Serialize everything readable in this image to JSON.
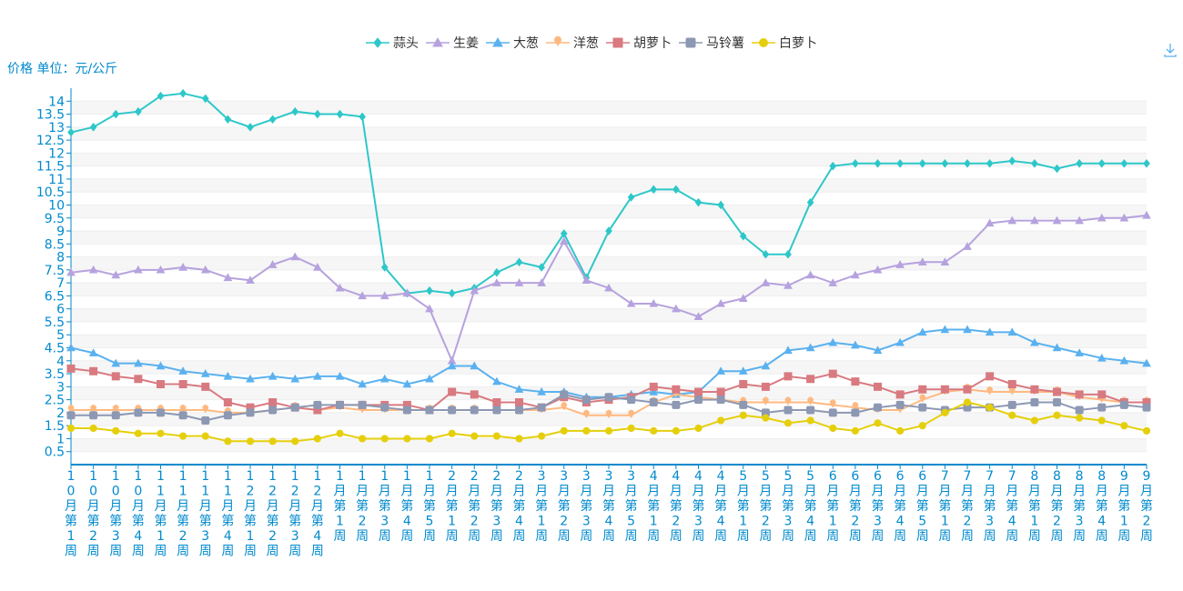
{
  "chart_data": {
    "type": "line",
    "y_axis_label": "价格 单位：元/公斤",
    "categories": [
      "10月第1周",
      "10月第2周",
      "10月第3周",
      "10月第4周",
      "11月第1周",
      "11月第2周",
      "11月第3周",
      "11月第4周",
      "12月第1周",
      "12月第2周",
      "12月第3周",
      "12月第4周",
      "1月第1周",
      "1月第2周",
      "1月第3周",
      "1月第4周",
      "1月第5周",
      "2月第1周",
      "2月第2周",
      "2月第3周",
      "2月第4周",
      "3月第1周",
      "3月第2周",
      "3月第3周",
      "3月第4周",
      "3月第5周",
      "4月第1周",
      "4月第2周",
      "4月第3周",
      "4月第4周",
      "5月第1周",
      "5月第2周",
      "5月第3周",
      "5月第4周",
      "6月第1周",
      "6月第2周",
      "6月第3周",
      "6月第4周",
      "6月第5周",
      "7月第1周",
      "7月第2周",
      "7月第3周",
      "7月第4周",
      "8月第1周",
      "8月第2周",
      "8月第3周",
      "8月第4周",
      "9月第1周",
      "9月第2周"
    ],
    "series": [
      {
        "name": "蒜头",
        "color": "#2ec7c9",
        "marker": "diamond",
        "values": [
          12.8,
          13.0,
          13.5,
          13.6,
          14.2,
          14.3,
          14.1,
          13.3,
          13.0,
          13.3,
          13.6,
          13.5,
          13.5,
          13.4,
          7.6,
          6.6,
          6.7,
          6.6,
          6.8,
          7.4,
          7.8,
          7.6,
          8.9,
          7.2,
          9.0,
          10.3,
          10.6,
          10.6,
          10.1,
          10.0,
          8.8,
          8.1,
          8.1,
          10.1,
          11.5,
          11.6,
          11.6,
          11.6,
          11.6,
          11.6,
          11.6,
          11.6,
          11.7,
          11.6,
          11.4,
          11.6,
          11.6,
          11.6,
          11.6
        ]
      },
      {
        "name": "生姜",
        "color": "#b6a2de",
        "marker": "triangle",
        "values": [
          7.4,
          7.5,
          7.3,
          7.5,
          7.5,
          7.6,
          7.5,
          7.2,
          7.1,
          7.7,
          8.0,
          7.6,
          6.8,
          6.5,
          6.5,
          6.6,
          6.0,
          4.0,
          6.7,
          7.0,
          7.0,
          7.0,
          8.6,
          7.1,
          6.8,
          6.2,
          6.2,
          6.0,
          5.7,
          6.2,
          6.4,
          7.0,
          6.9,
          7.3,
          7.0,
          7.3,
          7.5,
          7.7,
          7.8,
          7.8,
          8.4,
          9.3,
          9.4,
          9.4,
          9.4,
          9.4,
          9.5,
          9.5,
          9.6
        ]
      },
      {
        "name": "大葱",
        "color": "#5ab1ef",
        "marker": "triangle",
        "values": [
          4.5,
          4.3,
          3.9,
          3.9,
          3.8,
          3.6,
          3.5,
          3.4,
          3.3,
          3.4,
          3.3,
          3.4,
          3.4,
          3.1,
          3.3,
          3.1,
          3.3,
          3.8,
          3.8,
          3.2,
          2.9,
          2.8,
          2.8,
          2.6,
          2.6,
          2.7,
          2.8,
          2.7,
          2.8,
          3.6,
          3.6,
          3.8,
          4.4,
          4.5,
          4.7,
          4.6,
          4.4,
          4.7,
          5.1,
          5.2,
          5.2,
          5.1,
          5.1,
          4.7,
          4.5,
          4.3,
          4.1,
          4.0,
          3.9
        ]
      },
      {
        "name": "洋葱",
        "color": "#ffb980",
        "marker": "pin",
        "values": [
          2.1,
          2.1,
          2.1,
          2.1,
          2.1,
          2.1,
          2.1,
          2.0,
          2.0,
          2.1,
          2.2,
          2.1,
          2.2,
          2.1,
          2.1,
          2.1,
          2.1,
          2.1,
          2.1,
          2.1,
          2.1,
          2.1,
          2.2,
          1.9,
          1.9,
          1.9,
          2.4,
          2.7,
          2.6,
          2.5,
          2.4,
          2.4,
          2.4,
          2.4,
          2.3,
          2.2,
          2.1,
          2.1,
          2.5,
          2.8,
          2.9,
          2.8,
          2.8,
          2.8,
          2.8,
          2.6,
          2.5,
          2.4,
          2.4
        ]
      },
      {
        "name": "胡萝卜",
        "color": "#d87a80",
        "marker": "rect",
        "values": [
          3.7,
          3.6,
          3.4,
          3.3,
          3.1,
          3.1,
          3.0,
          2.4,
          2.2,
          2.4,
          2.2,
          2.1,
          2.3,
          2.3,
          2.3,
          2.3,
          2.1,
          2.8,
          2.7,
          2.4,
          2.4,
          2.2,
          2.6,
          2.4,
          2.5,
          2.6,
          3.0,
          2.9,
          2.8,
          2.8,
          3.1,
          3.0,
          3.4,
          3.3,
          3.5,
          3.2,
          3.0,
          2.7,
          2.9,
          2.9,
          2.9,
          3.4,
          3.1,
          2.9,
          2.8,
          2.7,
          2.7,
          2.4,
          2.4
        ]
      },
      {
        "name": "马铃薯",
        "color": "#8d98b3",
        "marker": "roundrect",
        "values": [
          1.9,
          1.9,
          1.9,
          2.0,
          2.0,
          1.9,
          1.7,
          1.9,
          2.0,
          2.1,
          2.2,
          2.3,
          2.3,
          2.3,
          2.2,
          2.1,
          2.1,
          2.1,
          2.1,
          2.1,
          2.1,
          2.2,
          2.7,
          2.5,
          2.6,
          2.5,
          2.4,
          2.3,
          2.5,
          2.5,
          2.3,
          2.0,
          2.1,
          2.1,
          2.0,
          2.0,
          2.2,
          2.3,
          2.2,
          2.1,
          2.2,
          2.2,
          2.3,
          2.4,
          2.4,
          2.1,
          2.2,
          2.3,
          2.2
        ]
      },
      {
        "name": "白萝卜",
        "color": "#e5cf0d",
        "marker": "circle",
        "values": [
          1.4,
          1.4,
          1.3,
          1.2,
          1.2,
          1.1,
          1.1,
          0.9,
          0.9,
          0.9,
          0.9,
          1.0,
          1.2,
          1.0,
          1.0,
          1.0,
          1.0,
          1.2,
          1.1,
          1.1,
          1.0,
          1.1,
          1.3,
          1.3,
          1.3,
          1.4,
          1.3,
          1.3,
          1.4,
          1.7,
          1.9,
          1.8,
          1.6,
          1.7,
          1.4,
          1.3,
          1.6,
          1.3,
          1.5,
          2.0,
          2.4,
          2.2,
          1.9,
          1.7,
          1.9,
          1.8,
          1.7,
          1.5,
          1.3
        ]
      }
    ],
    "ylim": [
      0,
      14.5
    ],
    "yticks": [
      0.5,
      1,
      1.5,
      2,
      2.5,
      3,
      3.5,
      4,
      4.5,
      5,
      5.5,
      6,
      6.5,
      7,
      7.5,
      8,
      8.5,
      9,
      9.5,
      10,
      10.5,
      11,
      11.5,
      12,
      12.5,
      13,
      13.5,
      14
    ],
    "grid": true,
    "legend": "top"
  }
}
